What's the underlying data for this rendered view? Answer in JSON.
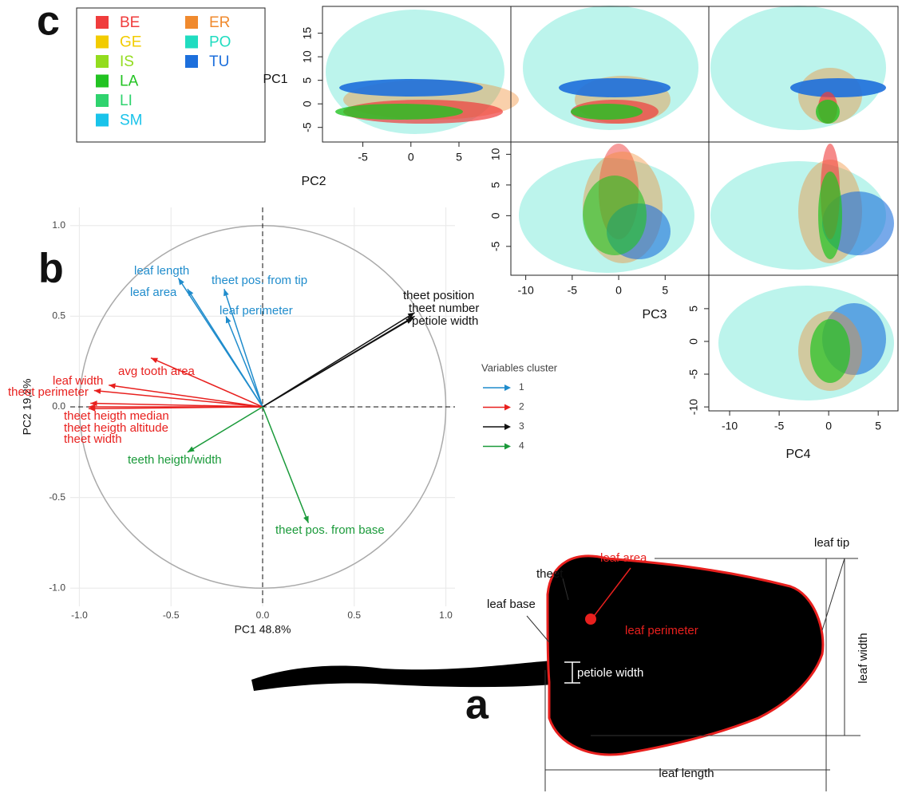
{
  "panel_labels": [
    "a",
    "b",
    "c"
  ],
  "chart_data": [
    {
      "type": "biplot",
      "x_label": "PC1 48.8%",
      "y_label": "PC2 19,2%",
      "xlim": [
        -1.05,
        1.05
      ],
      "ylim": [
        -1.1,
        1.1
      ],
      "xticks": [
        {
          "value": -1,
          "label": "-1.0"
        },
        -0.5,
        {
          "value": 0,
          "label": "0.0"
        },
        0.5,
        {
          "value": 1,
          "label": "1.0"
        }
      ],
      "yticks": [
        {
          "value": -1,
          "label": "-1.0"
        },
        -0.5,
        {
          "value": 0,
          "label": "0.0"
        },
        0.5,
        {
          "value": 1,
          "label": "1.0"
        }
      ],
      "grid": true,
      "legend_title": "Variables cluster",
      "series": [
        {
          "name": "1",
          "color": "#1f8ccc",
          "labels": [
            "leaf  length",
            "leaf area",
            "theet pos. from tip",
            "leaf perimeter"
          ],
          "x": [
            -0.46,
            -0.41,
            -0.21,
            -0.2
          ],
          "values": [
            0.71,
            0.65,
            0.65,
            0.5
          ]
        },
        {
          "name": "2",
          "color": "#e8201e",
          "labels": [
            "avg  tooth  area",
            "leaf  width",
            "theet perimeter",
            "theet heigth median",
            "theet heigth altitude",
            "theet width"
          ],
          "x": [
            -0.61,
            -0.84,
            -0.92,
            -0.94,
            -0.95,
            -0.95
          ],
          "values": [
            0.27,
            0.12,
            0.09,
            0.02,
            0.0,
            -0.01
          ]
        },
        {
          "name": "3",
          "color": "#111111",
          "labels": [
            "theet position",
            "theet number",
            "petiole width"
          ],
          "x": [
            0.83,
            0.83,
            0.82
          ],
          "values": [
            0.52,
            0.5,
            0.49
          ]
        },
        {
          "name": "4",
          "color": "#1a9a3a",
          "labels": [
            "teeth heigth/width",
            "theet pos. from base"
          ],
          "x": [
            -0.41,
            0.25
          ],
          "values": [
            -0.25,
            -0.64
          ]
        }
      ]
    },
    {
      "type": "pairs",
      "legend": [
        {
          "name": "BE",
          "color": "#f03c3c"
        },
        {
          "name": "GE",
          "color": "#f2cc00"
        },
        {
          "name": "IS",
          "color": "#93dc1e"
        },
        {
          "name": "LA",
          "color": "#22c322"
        },
        {
          "name": "LI",
          "color": "#2fd36e"
        },
        {
          "name": "SM",
          "color": "#19c3ea"
        },
        {
          "name": "ER",
          "color": "#f08a2e"
        },
        {
          "name": "PO",
          "color": "#20dcc0"
        },
        {
          "name": "TU",
          "color": "#1d6fdc"
        }
      ],
      "axes": [
        {
          "name": "PC1",
          "lim": [
            -8.1,
            20.7
          ],
          "ticks": [
            -5,
            0,
            5,
            10,
            15
          ]
        },
        {
          "name": "PC2",
          "lim": [
            -9.2,
            10.4
          ],
          "ticks": [
            -5,
            0,
            5
          ]
        },
        {
          "lim": [
            -9.7,
            12
          ],
          "ticks": [
            -5,
            0,
            5,
            10
          ]
        },
        {
          "name": "PC3",
          "lim": [
            -11.6,
            9.7
          ],
          "ticks": [
            -10,
            -5,
            0,
            5
          ]
        },
        {
          "lim": [
            -10.6,
            10.1
          ],
          "ticks": [
            -10,
            -5,
            0,
            5
          ]
        },
        {
          "name": "PC4",
          "lim": [
            -12.1,
            7
          ],
          "ticks": [
            -10,
            -5,
            0,
            5
          ]
        }
      ]
    }
  ],
  "diagram": {
    "labels": [
      "theet",
      "leaf area",
      "leaf tip",
      "leaf base",
      "leaf perimeter",
      "petiole width",
      "leaf width",
      "leaf length"
    ]
  }
}
